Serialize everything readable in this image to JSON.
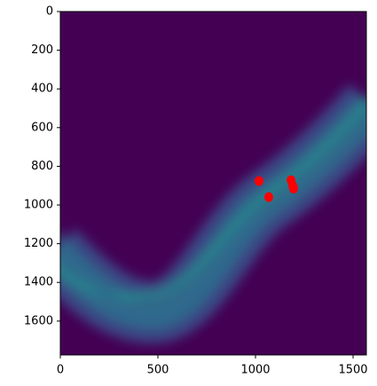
{
  "chart_data": {
    "type": "scatter",
    "x": [
      1018,
      1068,
      1182,
      1191,
      1195
    ],
    "y": [
      876,
      959,
      872,
      900,
      915
    ],
    "color": "#ff0000",
    "xlim": [
      0,
      1568
    ],
    "ylim": [
      1775,
      0
    ],
    "xticks": [
      0,
      500,
      1000,
      1500
    ],
    "yticks": [
      0,
      200,
      400,
      600,
      800,
      1000,
      1200,
      1400,
      1600
    ]
  }
}
